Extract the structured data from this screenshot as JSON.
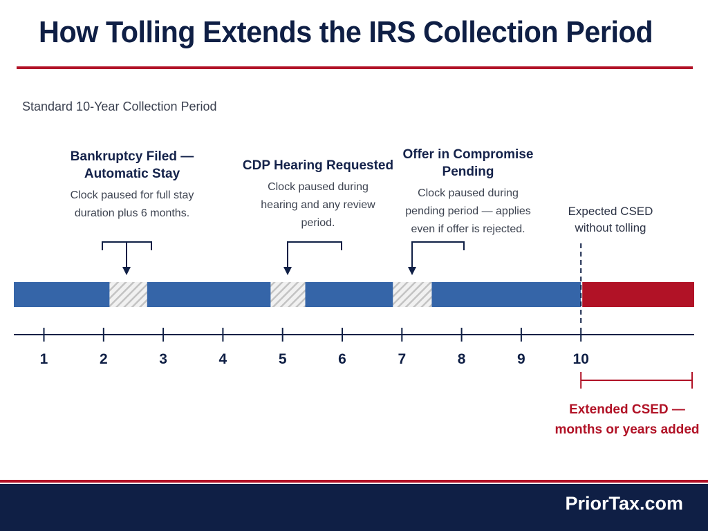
{
  "header": {
    "title": "How Tolling Extends the IRS Collection Period"
  },
  "section_label": "Standard 10-Year Collection Period",
  "events": [
    {
      "title_lines": [
        "Bankruptcy Filed —",
        "Automatic Stay"
      ],
      "desc_lines": [
        "Clock paused for full stay",
        "duration plus 6 months."
      ],
      "pause": [
        2.1,
        2.73
      ]
    },
    {
      "title_lines": [
        "CDP Hearing Requested"
      ],
      "desc_lines": [
        "Clock paused during",
        "hearing and any review",
        "period."
      ],
      "pause": [
        4.8,
        5.38
      ]
    },
    {
      "title_lines": [
        "Offer in Compromise",
        "Pending"
      ],
      "desc_lines": [
        "Clock paused during",
        "pending period — applies",
        "even if offer is rejected."
      ],
      "pause": [
        6.85,
        7.5
      ]
    }
  ],
  "axis": {
    "ticks": [
      "1",
      "2",
      "3",
      "4",
      "5",
      "6",
      "7",
      "8",
      "9",
      "10"
    ]
  },
  "csed": {
    "label_lines": [
      "Expected CSED",
      "without tolling"
    ],
    "at": 10
  },
  "extension": {
    "label_lines": [
      "Extended CSED —",
      "months or years added"
    ]
  },
  "colors": {
    "active": "#3565a8",
    "paused_hatch": "#c3c3c3",
    "extension": "#b11226",
    "navy": "#0f1f45",
    "accent_red": "#b11226"
  },
  "footer": {
    "brand": "PriorTax.com"
  }
}
